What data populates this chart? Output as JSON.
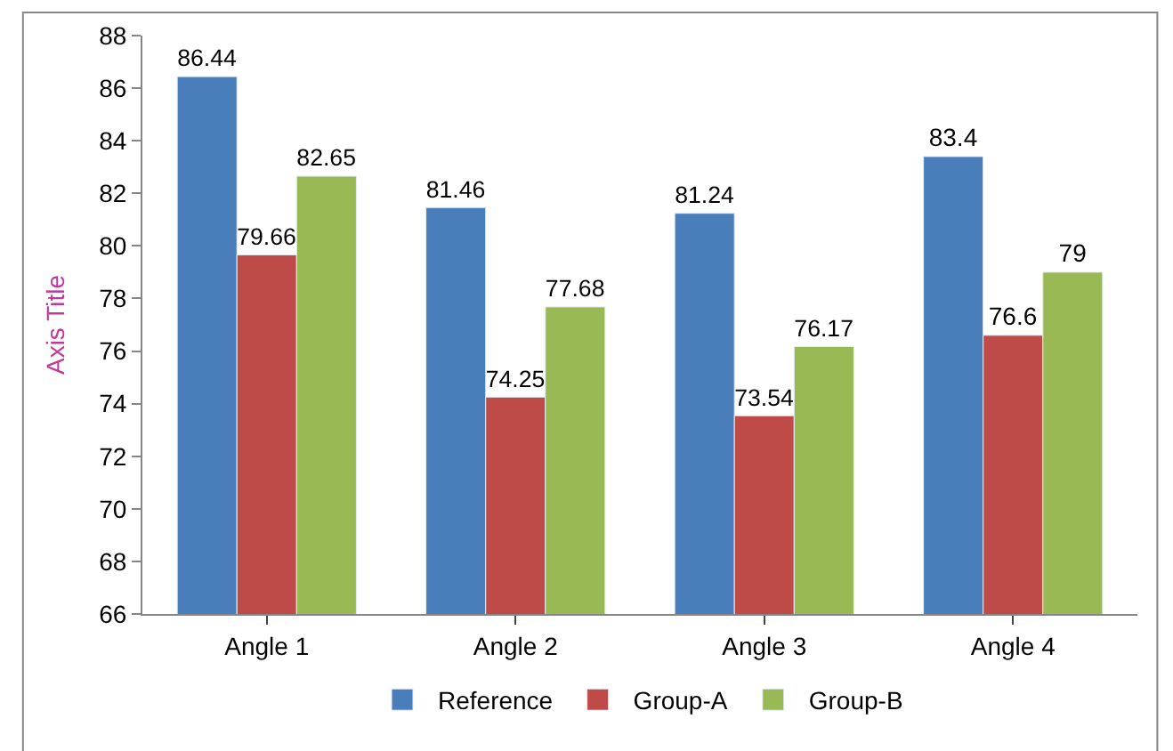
{
  "chart_data": {
    "type": "bar",
    "ylabel": "Axis Title",
    "categories": [
      "Angle 1",
      "Angle 2",
      "Angle 3",
      "Angle 4"
    ],
    "series": [
      {
        "name": "Reference",
        "color": "#4a7ebb",
        "values": [
          86.44,
          81.46,
          81.24,
          83.4
        ]
      },
      {
        "name": "Group-A",
        "color": "#be4b48",
        "values": [
          79.66,
          74.25,
          73.54,
          76.6
        ]
      },
      {
        "name": "Group-B",
        "color": "#98b954",
        "values": [
          82.65,
          77.68,
          76.17,
          79
        ]
      }
    ],
    "ylim": [
      66,
      88
    ],
    "yticks": [
      66,
      68,
      70,
      72,
      74,
      76,
      78,
      80,
      82,
      84,
      86,
      88
    ],
    "data_labels": true,
    "grid": false,
    "legend": "bottom"
  }
}
